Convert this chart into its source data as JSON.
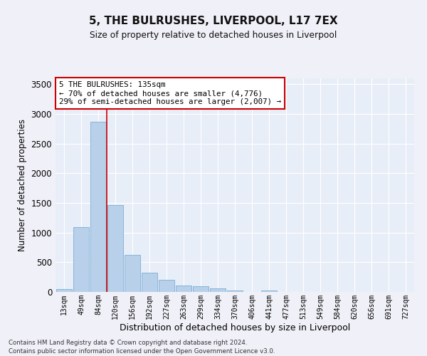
{
  "title": "5, THE BULRUSHES, LIVERPOOL, L17 7EX",
  "subtitle": "Size of property relative to detached houses in Liverpool",
  "xlabel": "Distribution of detached houses by size in Liverpool",
  "ylabel": "Number of detached properties",
  "bar_color": "#b8d0ea",
  "bar_edge_color": "#7aafd4",
  "background_color": "#e8eef8",
  "grid_color": "#ffffff",
  "categories": [
    "13sqm",
    "49sqm",
    "84sqm",
    "120sqm",
    "156sqm",
    "192sqm",
    "227sqm",
    "263sqm",
    "299sqm",
    "334sqm",
    "370sqm",
    "406sqm",
    "441sqm",
    "477sqm",
    "513sqm",
    "549sqm",
    "584sqm",
    "620sqm",
    "656sqm",
    "691sqm",
    "727sqm"
  ],
  "values": [
    50,
    1090,
    2870,
    1470,
    630,
    330,
    200,
    105,
    100,
    65,
    30,
    5,
    30,
    5,
    0,
    0,
    0,
    0,
    0,
    0,
    0
  ],
  "vline_x": 2.5,
  "annotation_title": "5 THE BULRUSHES: 135sqm",
  "annotation_line1": "← 70% of detached houses are smaller (4,776)",
  "annotation_line2": "29% of semi-detached houses are larger (2,007) →",
  "annotation_box_color": "#ffffff",
  "annotation_border_color": "#cc0000",
  "vline_color": "#cc0000",
  "ylim": [
    0,
    3600
  ],
  "yticks": [
    0,
    500,
    1000,
    1500,
    2000,
    2500,
    3000,
    3500
  ],
  "footnote1": "Contains HM Land Registry data © Crown copyright and database right 2024.",
  "footnote2": "Contains public sector information licensed under the Open Government Licence v3.0."
}
